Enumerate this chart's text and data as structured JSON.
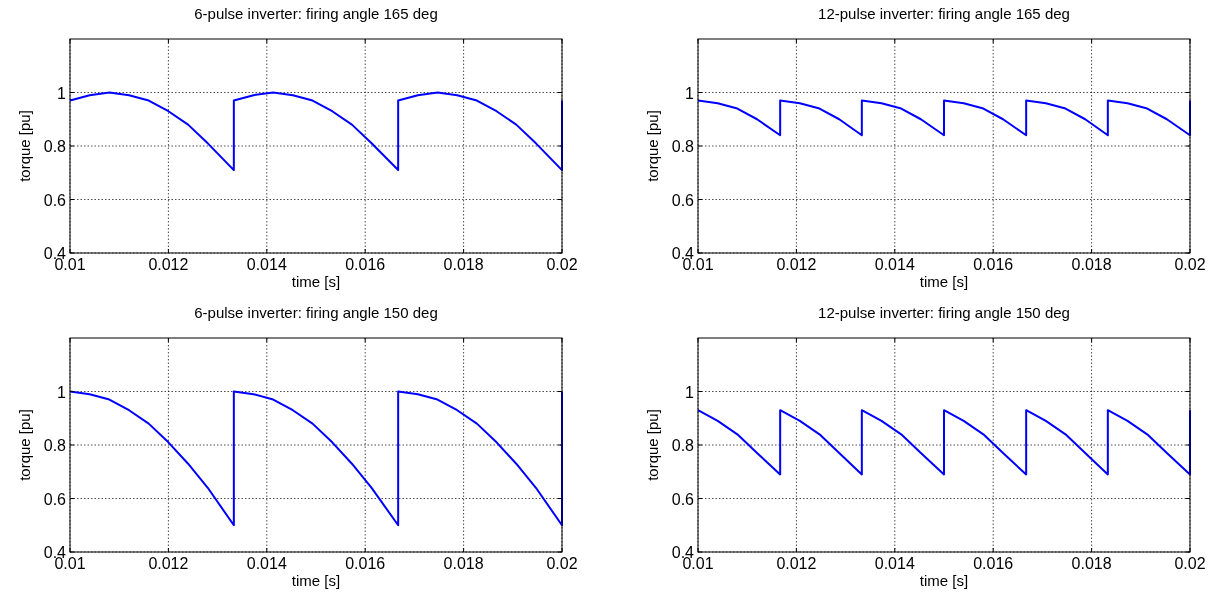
{
  "chart_data": [
    {
      "type": "line",
      "title": "6-pulse inverter: firing angle 165 deg",
      "xlabel": "time [s]",
      "ylabel": "torque [pu]",
      "xlim": [
        0.01,
        0.02
      ],
      "ylim": [
        0.4,
        1.2
      ],
      "xticks": [
        0.01,
        0.012,
        0.014,
        0.016,
        0.018,
        0.02
      ],
      "yticks": [
        0.4,
        0.6,
        0.8,
        1
      ],
      "grid": true,
      "line_style": "solid",
      "series": [
        {
          "color": "#0000ff",
          "x": [
            0.01,
            0.0104,
            0.0108,
            0.0112,
            0.0116,
            0.012,
            0.0124,
            0.0128,
            0.01333,
            0.01333,
            0.01373,
            0.01413,
            0.01453,
            0.01493,
            0.01533,
            0.01573,
            0.01613,
            0.01667,
            0.01667,
            0.01707,
            0.01747,
            0.01787,
            0.01827,
            0.01867,
            0.01907,
            0.01947,
            0.02,
            0.02
          ],
          "values": [
            0.97,
            0.99,
            1.0,
            0.99,
            0.97,
            0.93,
            0.88,
            0.81,
            0.71,
            0.97,
            0.99,
            1.0,
            0.99,
            0.97,
            0.93,
            0.88,
            0.81,
            0.71,
            0.97,
            0.99,
            1.0,
            0.99,
            0.97,
            0.93,
            0.88,
            0.81,
            0.71,
            0.97
          ]
        }
      ]
    },
    {
      "type": "line",
      "title": "12-pulse inverter: firing angle 165 deg",
      "xlabel": "time [s]",
      "ylabel": "torque [pu]",
      "xlim": [
        0.01,
        0.02
      ],
      "ylim": [
        0.4,
        1.2
      ],
      "xticks": [
        0.01,
        0.012,
        0.014,
        0.016,
        0.018,
        0.02
      ],
      "yticks": [
        0.4,
        0.6,
        0.8,
        1
      ],
      "grid": true,
      "line_style": "solid",
      "series": [
        {
          "color": "#0000ff",
          "x": [
            0.01,
            0.0104,
            0.0108,
            0.0112,
            0.01167,
            0.01167,
            0.01207,
            0.01247,
            0.01287,
            0.01333,
            0.01333,
            0.01373,
            0.01413,
            0.01453,
            0.015,
            0.015,
            0.0154,
            0.0158,
            0.0162,
            0.01667,
            0.01667,
            0.01707,
            0.01747,
            0.01787,
            0.01833,
            0.01833,
            0.01873,
            0.01913,
            0.01953,
            0.02,
            0.02
          ],
          "values": [
            0.97,
            0.96,
            0.94,
            0.9,
            0.84,
            0.97,
            0.96,
            0.94,
            0.9,
            0.84,
            0.97,
            0.96,
            0.94,
            0.9,
            0.84,
            0.97,
            0.96,
            0.94,
            0.9,
            0.84,
            0.97,
            0.96,
            0.94,
            0.9,
            0.84,
            0.97,
            0.96,
            0.94,
            0.9,
            0.84,
            0.97
          ]
        }
      ]
    },
    {
      "type": "line",
      "title": "6-pulse inverter: firing angle 150 deg",
      "xlabel": "time [s]",
      "ylabel": "torque [pu]",
      "xlim": [
        0.01,
        0.02
      ],
      "ylim": [
        0.4,
        1.2
      ],
      "xticks": [
        0.01,
        0.012,
        0.014,
        0.016,
        0.018,
        0.02
      ],
      "yticks": [
        0.4,
        0.6,
        0.8,
        1
      ],
      "grid": true,
      "line_style": "solid",
      "series": [
        {
          "color": "#0000ff",
          "x": [
            0.01,
            0.0104,
            0.0108,
            0.0112,
            0.0116,
            0.012,
            0.0124,
            0.0128,
            0.01333,
            0.01333,
            0.01373,
            0.01413,
            0.01453,
            0.01493,
            0.01533,
            0.01573,
            0.01613,
            0.01667,
            0.01667,
            0.01707,
            0.01747,
            0.01787,
            0.01827,
            0.01867,
            0.01907,
            0.01947,
            0.02,
            0.02
          ],
          "values": [
            1.0,
            0.99,
            0.97,
            0.93,
            0.88,
            0.81,
            0.73,
            0.64,
            0.5,
            1.0,
            0.99,
            0.97,
            0.93,
            0.88,
            0.81,
            0.73,
            0.64,
            0.5,
            1.0,
            0.99,
            0.97,
            0.93,
            0.88,
            0.81,
            0.73,
            0.64,
            0.5,
            1.0
          ]
        }
      ]
    },
    {
      "type": "line",
      "title": "12-pulse inverter: firing angle 150 deg",
      "xlabel": "time [s]",
      "ylabel": "torque [pu]",
      "xlim": [
        0.01,
        0.02
      ],
      "ylim": [
        0.4,
        1.2
      ],
      "xticks": [
        0.01,
        0.012,
        0.014,
        0.016,
        0.018,
        0.02
      ],
      "yticks": [
        0.4,
        0.6,
        0.8,
        1
      ],
      "grid": true,
      "line_style": "solid",
      "series": [
        {
          "color": "#0000ff",
          "x": [
            0.01,
            0.0104,
            0.0108,
            0.0112,
            0.01167,
            0.01167,
            0.01207,
            0.01247,
            0.01287,
            0.01333,
            0.01333,
            0.01373,
            0.01413,
            0.01453,
            0.015,
            0.015,
            0.0154,
            0.0158,
            0.0162,
            0.01667,
            0.01667,
            0.01707,
            0.01747,
            0.01787,
            0.01833,
            0.01833,
            0.01873,
            0.01913,
            0.01953,
            0.02,
            0.02
          ],
          "values": [
            0.93,
            0.89,
            0.84,
            0.77,
            0.69,
            0.93,
            0.89,
            0.84,
            0.77,
            0.69,
            0.93,
            0.89,
            0.84,
            0.77,
            0.69,
            0.93,
            0.89,
            0.84,
            0.77,
            0.69,
            0.93,
            0.89,
            0.84,
            0.77,
            0.69,
            0.93,
            0.89,
            0.84,
            0.77,
            0.69,
            0.93
          ]
        }
      ]
    }
  ]
}
